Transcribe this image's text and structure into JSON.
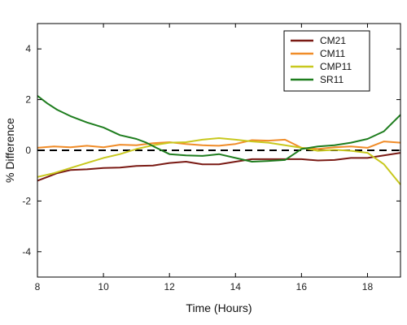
{
  "chart_data": {
    "type": "line",
    "xlabel": "Time (Hours)",
    "ylabel": "% Difference",
    "xlim": [
      8,
      19
    ],
    "ylim": [
      -5,
      5
    ],
    "xticks": [
      8,
      10,
      12,
      14,
      16,
      18
    ],
    "yticks": [
      -4,
      -2,
      0,
      2,
      4
    ],
    "grid": false,
    "legend_position": "top-right",
    "reference_line": {
      "y": 0,
      "style": "dashed",
      "color": "#000000"
    },
    "series": [
      {
        "name": "CM21",
        "color": "#7a1a14",
        "points": [
          [
            8,
            -1.2
          ],
          [
            8.3,
            -1.05
          ],
          [
            8.6,
            -0.9
          ],
          [
            9,
            -0.78
          ],
          [
            9.5,
            -0.75
          ],
          [
            10,
            -0.7
          ],
          [
            10.5,
            -0.68
          ],
          [
            11,
            -0.62
          ],
          [
            11.5,
            -0.6
          ],
          [
            12,
            -0.5
          ],
          [
            12.5,
            -0.45
          ],
          [
            13,
            -0.55
          ],
          [
            13.5,
            -0.55
          ],
          [
            14,
            -0.45
          ],
          [
            14.5,
            -0.35
          ],
          [
            15,
            -0.35
          ],
          [
            15.5,
            -0.35
          ],
          [
            16,
            -0.35
          ],
          [
            16.5,
            -0.4
          ],
          [
            17,
            -0.38
          ],
          [
            17.5,
            -0.3
          ],
          [
            18,
            -0.3
          ],
          [
            18.5,
            -0.2
          ],
          [
            19,
            -0.1
          ]
        ]
      },
      {
        "name": "CM11",
        "color": "#f08c28",
        "points": [
          [
            8,
            0.1
          ],
          [
            8.5,
            0.15
          ],
          [
            9,
            0.12
          ],
          [
            9.5,
            0.18
          ],
          [
            10,
            0.12
          ],
          [
            10.5,
            0.22
          ],
          [
            11,
            0.2
          ],
          [
            11.5,
            0.28
          ],
          [
            12,
            0.32
          ],
          [
            12.5,
            0.25
          ],
          [
            13,
            0.2
          ],
          [
            13.5,
            0.18
          ],
          [
            14,
            0.25
          ],
          [
            14.5,
            0.4
          ],
          [
            15,
            0.38
          ],
          [
            15.5,
            0.42
          ],
          [
            16,
            0.1
          ],
          [
            16.5,
            0.05
          ],
          [
            17,
            0.12
          ],
          [
            17.5,
            0.15
          ],
          [
            18,
            0.1
          ],
          [
            18.5,
            0.35
          ],
          [
            19,
            0.3
          ]
        ]
      },
      {
        "name": "CMP11",
        "color": "#c8c81e",
        "points": [
          [
            8,
            -1.05
          ],
          [
            8.5,
            -0.9
          ],
          [
            9,
            -0.7
          ],
          [
            9.5,
            -0.5
          ],
          [
            10,
            -0.3
          ],
          [
            10.5,
            -0.15
          ],
          [
            11,
            0.05
          ],
          [
            11.5,
            0.2
          ],
          [
            12,
            0.3
          ],
          [
            12.5,
            0.32
          ],
          [
            13,
            0.42
          ],
          [
            13.5,
            0.48
          ],
          [
            14,
            0.42
          ],
          [
            14.5,
            0.35
          ],
          [
            15,
            0.3
          ],
          [
            15.5,
            0.2
          ],
          [
            16,
            0.1
          ],
          [
            16.5,
            -0.02
          ],
          [
            17,
            0.02
          ],
          [
            17.5,
            -0.02
          ],
          [
            18,
            -0.1
          ],
          [
            18.5,
            -0.55
          ],
          [
            19,
            -1.35
          ]
        ]
      },
      {
        "name": "SR11",
        "color": "#1e7d1e",
        "points": [
          [
            8,
            2.15
          ],
          [
            8.3,
            1.85
          ],
          [
            8.6,
            1.6
          ],
          [
            9,
            1.35
          ],
          [
            9.5,
            1.1
          ],
          [
            10,
            0.9
          ],
          [
            10.5,
            0.6
          ],
          [
            11,
            0.45
          ],
          [
            11.3,
            0.3
          ],
          [
            11.6,
            0.1
          ],
          [
            12,
            -0.15
          ],
          [
            12.5,
            -0.2
          ],
          [
            13,
            -0.22
          ],
          [
            13.5,
            -0.15
          ],
          [
            14,
            -0.3
          ],
          [
            14.5,
            -0.45
          ],
          [
            15,
            -0.42
          ],
          [
            15.5,
            -0.38
          ],
          [
            16,
            0.05
          ],
          [
            16.5,
            0.15
          ],
          [
            17,
            0.2
          ],
          [
            17.5,
            0.3
          ],
          [
            18,
            0.45
          ],
          [
            18.5,
            0.75
          ],
          [
            19,
            1.4
          ]
        ]
      }
    ]
  }
}
